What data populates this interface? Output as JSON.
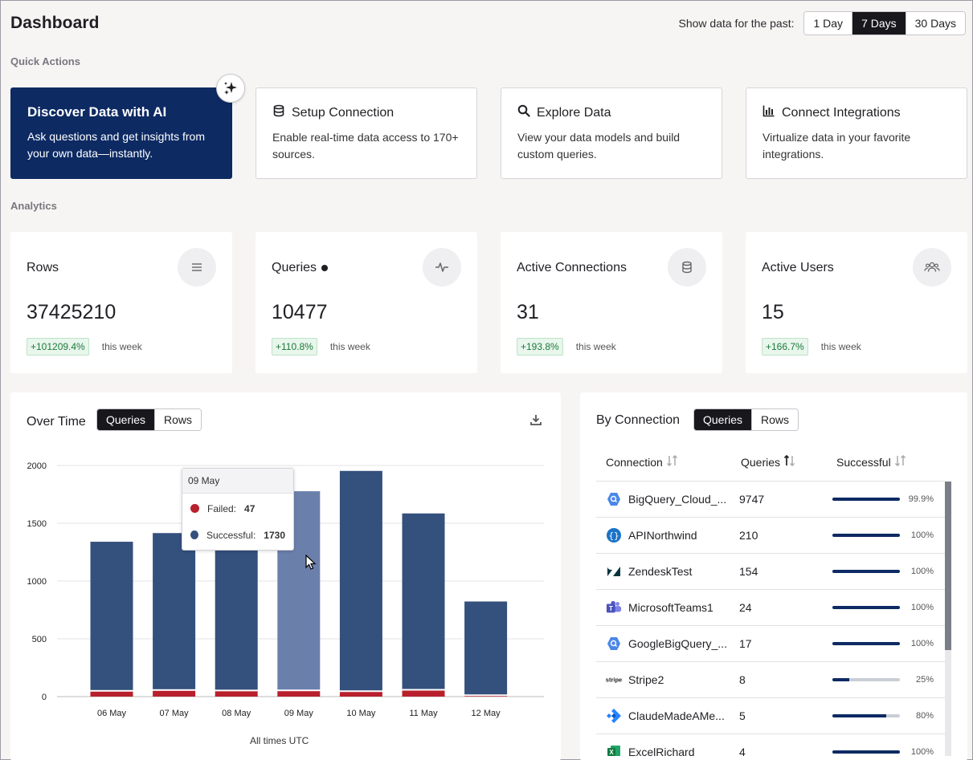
{
  "header": {
    "title": "Dashboard",
    "range_label": "Show data for the past:",
    "ranges": [
      "1 Day",
      "7 Days",
      "30 Days"
    ],
    "active_range": "7 Days"
  },
  "quick_actions": {
    "label": "Quick Actions",
    "cards": [
      {
        "title": "Discover Data with AI",
        "desc": "Ask questions and get insights from your own data—instantly."
      },
      {
        "title": "Setup Connection",
        "desc": "Enable real-time data access to 170+ sources."
      },
      {
        "title": "Explore Data",
        "desc": "View your data models and build custom queries."
      },
      {
        "title": "Connect Integrations",
        "desc": "Virtualize data in your favorite integrations."
      }
    ]
  },
  "analytics": {
    "label": "Analytics",
    "stats": [
      {
        "title": "Rows",
        "value": "37425210",
        "delta": "+101209.4%",
        "period": "this week",
        "icon": "list-icon"
      },
      {
        "title": "Queries",
        "value": "10477",
        "delta": "+110.8%",
        "period": "this week",
        "icon": "pulse-icon"
      },
      {
        "title": "Active Connections",
        "value": "31",
        "delta": "+193.8%",
        "period": "this week",
        "icon": "database-icon"
      },
      {
        "title": "Active Users",
        "value": "15",
        "delta": "+166.7%",
        "period": "this week",
        "icon": "users-icon"
      }
    ]
  },
  "over_time": {
    "title": "Over Time",
    "toggle": [
      "Queries",
      "Rows"
    ],
    "active": "Queries",
    "footer": "All times UTC",
    "tooltip": {
      "date": "09 May",
      "failed_label": "Failed:",
      "failed": "47",
      "success_label": "Successful:",
      "success": "1730"
    }
  },
  "chart_data": {
    "type": "bar",
    "stacked": true,
    "categories": [
      "06 May",
      "07 May",
      "08 May",
      "09 May",
      "10 May",
      "11 May",
      "12 May"
    ],
    "series": [
      {
        "name": "Failed",
        "values": [
          43,
          50,
          46,
          47,
          40,
          52,
          5
        ],
        "color": "#b8202e"
      },
      {
        "name": "Successful",
        "values": [
          1297,
          1365,
          1500,
          1730,
          1913,
          1533,
          818
        ],
        "color": "#34507c"
      }
    ],
    "highlight_index": 3,
    "highlight_color": "#6b7fab",
    "ylim": [
      0,
      2000
    ],
    "yticks": [
      0,
      500,
      1000,
      1500,
      2000
    ],
    "grid": true,
    "xlabel": "All times UTC"
  },
  "by_connection": {
    "title": "By Connection",
    "toggle": [
      "Queries",
      "Rows"
    ],
    "active": "Queries",
    "columns": [
      "Connection",
      "Queries",
      "Successful"
    ],
    "rows": [
      {
        "name": "BigQuery_Cloud_...",
        "queries": "9747",
        "success": 0.999,
        "pct": "99.9%",
        "icon": "bigquery-icon"
      },
      {
        "name": "APINorthwind",
        "queries": "210",
        "success": 1,
        "pct": "100%",
        "icon": "api-icon"
      },
      {
        "name": "ZendeskTest",
        "queries": "154",
        "success": 1,
        "pct": "100%",
        "icon": "zendesk-icon"
      },
      {
        "name": "MicrosoftTeams1",
        "queries": "24",
        "success": 1,
        "pct": "100%",
        "icon": "teams-icon"
      },
      {
        "name": "GoogleBigQuery_...",
        "queries": "17",
        "success": 1,
        "pct": "100%",
        "icon": "bigquery-icon"
      },
      {
        "name": "Stripe2",
        "queries": "8",
        "success": 0.25,
        "pct": "25%",
        "icon": "stripe-icon"
      },
      {
        "name": "ClaudeMadeAMe...",
        "queries": "5",
        "success": 0.8,
        "pct": "80%",
        "icon": "jira-icon"
      },
      {
        "name": "ExcelRichard",
        "queries": "4",
        "success": 1,
        "pct": "100%",
        "icon": "excel-icon"
      }
    ]
  }
}
